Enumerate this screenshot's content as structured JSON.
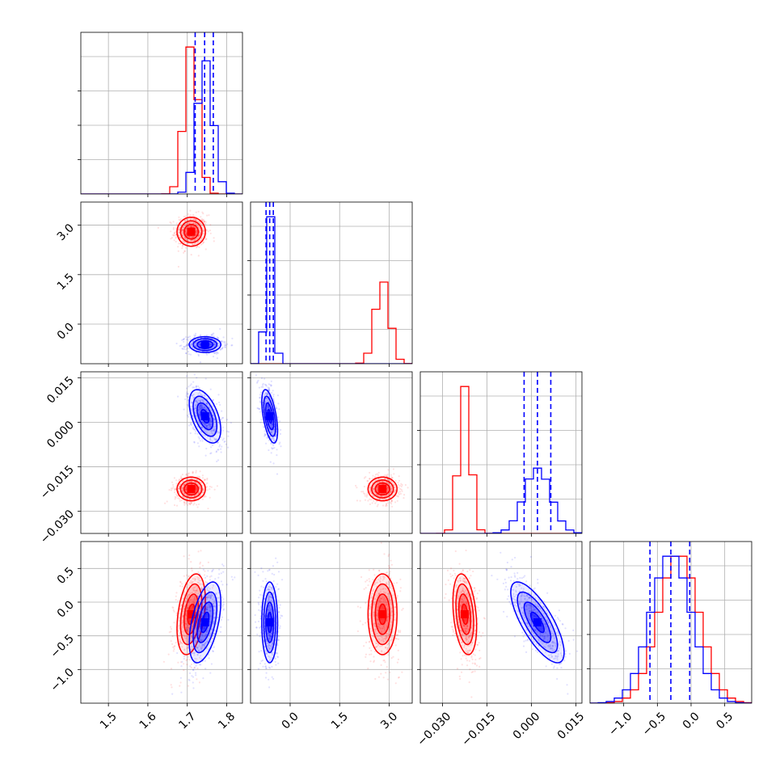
{
  "chart_data": {
    "type": "corner",
    "params": [
      {
        "range": [
          1.43,
          1.84
        ],
        "ticks": [
          1.5,
          1.6,
          1.7,
          1.8
        ],
        "labels": [
          "1.5",
          "1.6",
          "1.7",
          "1.8"
        ]
      },
      {
        "range": [
          -1.2,
          3.7
        ],
        "ticks": [
          0.0,
          1.5,
          3.0
        ],
        "labels": [
          "0.0",
          "1.5",
          "3.0"
        ]
      },
      {
        "range": [
          -0.0375,
          0.017
        ],
        "ticks": [
          -0.03,
          -0.015,
          0.0,
          0.015
        ],
        "labels": [
          "−0.030",
          "−0.015",
          "0.000",
          "0.015"
        ]
      },
      {
        "range": [
          -1.5,
          0.9
        ],
        "ticks": [
          -1.0,
          -0.5,
          0.0,
          0.5
        ],
        "labels": [
          "−1.0",
          "−0.5",
          "0.0",
          "0.5"
        ]
      }
    ],
    "series": [
      {
        "color": "#ff0000",
        "mean": [
          1.71,
          2.8,
          -0.0225,
          -0.18
        ],
        "sd": [
          0.018,
          0.22,
          0.002,
          0.3
        ],
        "corr": {
          "0-3": 0.35,
          "2-3": -0.3
        },
        "quantiles": false
      },
      {
        "color": "#0000ff",
        "mean": [
          1.745,
          -0.62,
          0.002,
          -0.3
        ],
        "sd": [
          0.02,
          0.12,
          0.0045,
          0.3
        ],
        "corr": {
          "0-2": -0.5,
          "0-3": 0.5,
          "1-2": -0.55,
          "2-3": -0.75
        },
        "quantiles": true
      }
    ],
    "quantile_lines": {
      "0": [
        1.72,
        1.744,
        1.766
      ],
      "1": [
        -0.73,
        -0.62,
        -0.51
      ],
      "2": [
        -0.0025,
        0.002,
        0.0065
      ],
      "3": [
        -0.61,
        -0.3,
        -0.02
      ]
    }
  }
}
